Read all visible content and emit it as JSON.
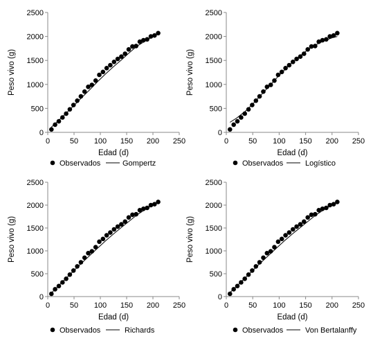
{
  "chart_data": [
    {
      "type": "scatter",
      "xlabel": "Edad (d)",
      "ylabel": "Peso vivo (g)",
      "xlim": [
        0,
        250
      ],
      "ylim": [
        0,
        2500
      ],
      "xticks": [
        0,
        50,
        100,
        150,
        200,
        250
      ],
      "yticks": [
        0,
        500,
        1000,
        1500,
        2000,
        2500
      ],
      "grid": false,
      "legend_position": "bottom",
      "series": [
        {
          "name": "Observados",
          "style": "markers",
          "x": [
            7,
            14,
            21,
            28,
            35,
            42,
            49,
            56,
            63,
            70,
            77,
            84,
            91,
            98,
            105,
            112,
            119,
            126,
            133,
            140,
            147,
            154,
            161,
            168,
            175,
            182,
            189,
            196,
            203,
            210
          ],
          "y": [
            60,
            160,
            230,
            310,
            390,
            480,
            570,
            660,
            750,
            850,
            950,
            990,
            1080,
            1200,
            1260,
            1340,
            1400,
            1470,
            1530,
            1580,
            1640,
            1730,
            1790,
            1800,
            1890,
            1920,
            1940,
            2000,
            2020,
            2070
          ]
        },
        {
          "name": "Gompertz",
          "style": "line",
          "x": [
            7,
            20,
            35,
            50,
            65,
            80,
            95,
            110,
            125,
            140,
            155,
            170,
            185,
            200,
            210
          ],
          "y": [
            110,
            240,
            400,
            560,
            730,
            890,
            1060,
            1220,
            1370,
            1510,
            1660,
            1800,
            1900,
            2000,
            2060
          ]
        }
      ]
    },
    {
      "type": "scatter",
      "xlabel": "Edad (d)",
      "ylabel": "Peso vivo (g)",
      "xlim": [
        0,
        250
      ],
      "ylim": [
        0,
        2500
      ],
      "xticks": [
        0,
        50,
        100,
        150,
        200,
        250
      ],
      "yticks": [
        0,
        500,
        1000,
        1500,
        2000,
        2500
      ],
      "grid": false,
      "legend_position": "bottom",
      "series": [
        {
          "name": "Observados",
          "style": "markers",
          "x": [
            7,
            14,
            21,
            28,
            35,
            42,
            49,
            56,
            63,
            70,
            77,
            84,
            91,
            98,
            105,
            112,
            119,
            126,
            133,
            140,
            147,
            154,
            161,
            168,
            175,
            182,
            189,
            196,
            203,
            210
          ],
          "y": [
            60,
            160,
            230,
            310,
            390,
            480,
            570,
            660,
            750,
            850,
            950,
            990,
            1080,
            1200,
            1260,
            1340,
            1400,
            1470,
            1530,
            1580,
            1640,
            1730,
            1790,
            1800,
            1890,
            1920,
            1940,
            2000,
            2020,
            2070
          ]
        },
        {
          "name": "Logístico",
          "style": "line",
          "x": [
            7,
            20,
            35,
            50,
            65,
            80,
            95,
            110,
            125,
            140,
            155,
            170,
            185,
            200,
            210
          ],
          "y": [
            210,
            300,
            430,
            590,
            770,
            950,
            1130,
            1300,
            1460,
            1600,
            1730,
            1830,
            1910,
            1970,
            2000
          ]
        }
      ]
    },
    {
      "type": "scatter",
      "xlabel": "Edad (d)",
      "ylabel": "Peso vivo (g)",
      "xlim": [
        0,
        250
      ],
      "ylim": [
        0,
        2500
      ],
      "xticks": [
        0,
        50,
        100,
        150,
        200,
        250
      ],
      "yticks": [
        0,
        500,
        1000,
        1500,
        2000,
        2500
      ],
      "grid": false,
      "legend_position": "bottom",
      "series": [
        {
          "name": "Observados",
          "style": "markers",
          "x": [
            7,
            14,
            21,
            28,
            35,
            42,
            49,
            56,
            63,
            70,
            77,
            84,
            91,
            98,
            105,
            112,
            119,
            126,
            133,
            140,
            147,
            154,
            161,
            168,
            175,
            182,
            189,
            196,
            203,
            210
          ],
          "y": [
            60,
            160,
            230,
            310,
            390,
            480,
            570,
            660,
            750,
            850,
            950,
            990,
            1080,
            1200,
            1260,
            1340,
            1400,
            1470,
            1530,
            1580,
            1640,
            1730,
            1790,
            1800,
            1890,
            1920,
            1940,
            2000,
            2020,
            2070
          ]
        },
        {
          "name": "Richards",
          "style": "line",
          "x": [
            7,
            20,
            35,
            50,
            65,
            80,
            95,
            110,
            125,
            140,
            155,
            170,
            185,
            200,
            210
          ],
          "y": [
            80,
            230,
            400,
            570,
            740,
            900,
            1060,
            1220,
            1370,
            1510,
            1650,
            1790,
            1900,
            2000,
            2060
          ]
        }
      ]
    },
    {
      "type": "scatter",
      "xlabel": "Edad (d)",
      "ylabel": "Peso vivo (g)",
      "xlim": [
        0,
        250
      ],
      "ylim": [
        0,
        2500
      ],
      "xticks": [
        0,
        50,
        100,
        150,
        200,
        250
      ],
      "yticks": [
        0,
        500,
        1000,
        1500,
        2000,
        2500
      ],
      "grid": false,
      "legend_position": "bottom",
      "series": [
        {
          "name": "Observados",
          "style": "markers",
          "x": [
            7,
            14,
            21,
            28,
            35,
            42,
            49,
            56,
            63,
            70,
            77,
            84,
            91,
            98,
            105,
            112,
            119,
            126,
            133,
            140,
            147,
            154,
            161,
            168,
            175,
            182,
            189,
            196,
            203,
            210
          ],
          "y": [
            60,
            160,
            230,
            310,
            390,
            480,
            570,
            660,
            750,
            850,
            950,
            990,
            1080,
            1200,
            1260,
            1340,
            1400,
            1470,
            1530,
            1580,
            1640,
            1730,
            1790,
            1800,
            1890,
            1920,
            1940,
            2000,
            2020,
            2070
          ]
        },
        {
          "name": "Von Bertalanffy",
          "style": "line",
          "x": [
            7,
            20,
            35,
            50,
            65,
            80,
            95,
            110,
            125,
            140,
            155,
            170,
            185,
            200,
            210
          ],
          "y": [
            90,
            230,
            400,
            570,
            740,
            900,
            1060,
            1220,
            1370,
            1510,
            1650,
            1790,
            1900,
            2000,
            2060
          ]
        }
      ]
    }
  ]
}
